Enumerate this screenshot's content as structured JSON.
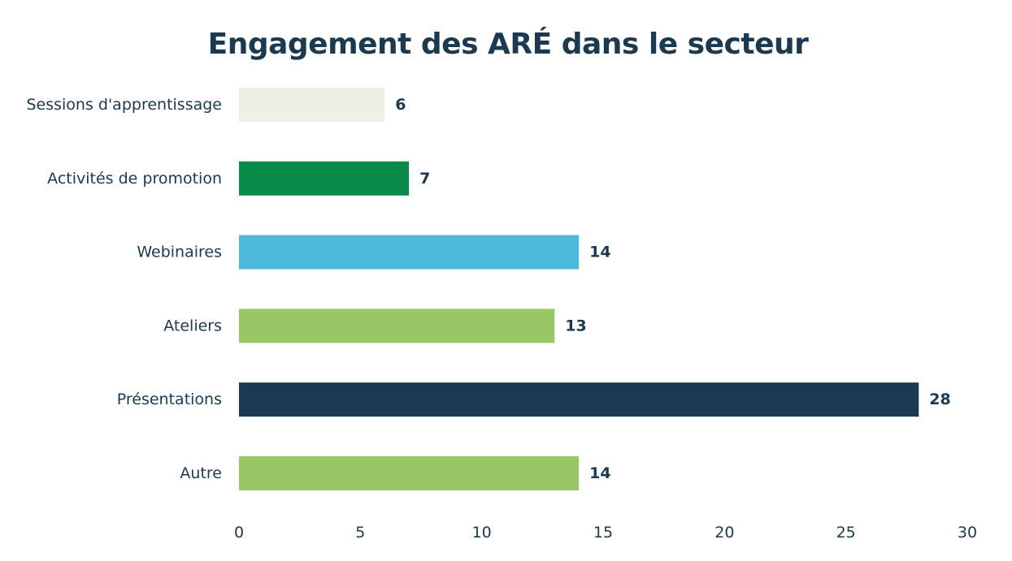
{
  "chart_data": {
    "type": "bar",
    "orientation": "horizontal",
    "title": "Engagement des ARÉ dans le secteur",
    "categories": [
      "Sessions d'apprentissage",
      "Activités de promotion",
      "Webinaires",
      "Ateliers",
      "Présentations",
      "Autre"
    ],
    "values": [
      6,
      7,
      14,
      13,
      28,
      14
    ],
    "colors": [
      "#eef0e8",
      "#0a8a4a",
      "#4cb8da",
      "#99c766",
      "#1a3a52",
      "#99c766"
    ],
    "xlim": [
      0,
      30
    ],
    "xticks": [
      0,
      5,
      10,
      15,
      20,
      25,
      30
    ],
    "xlabel": "",
    "ylabel": "",
    "grid": false,
    "legend": "none"
  }
}
